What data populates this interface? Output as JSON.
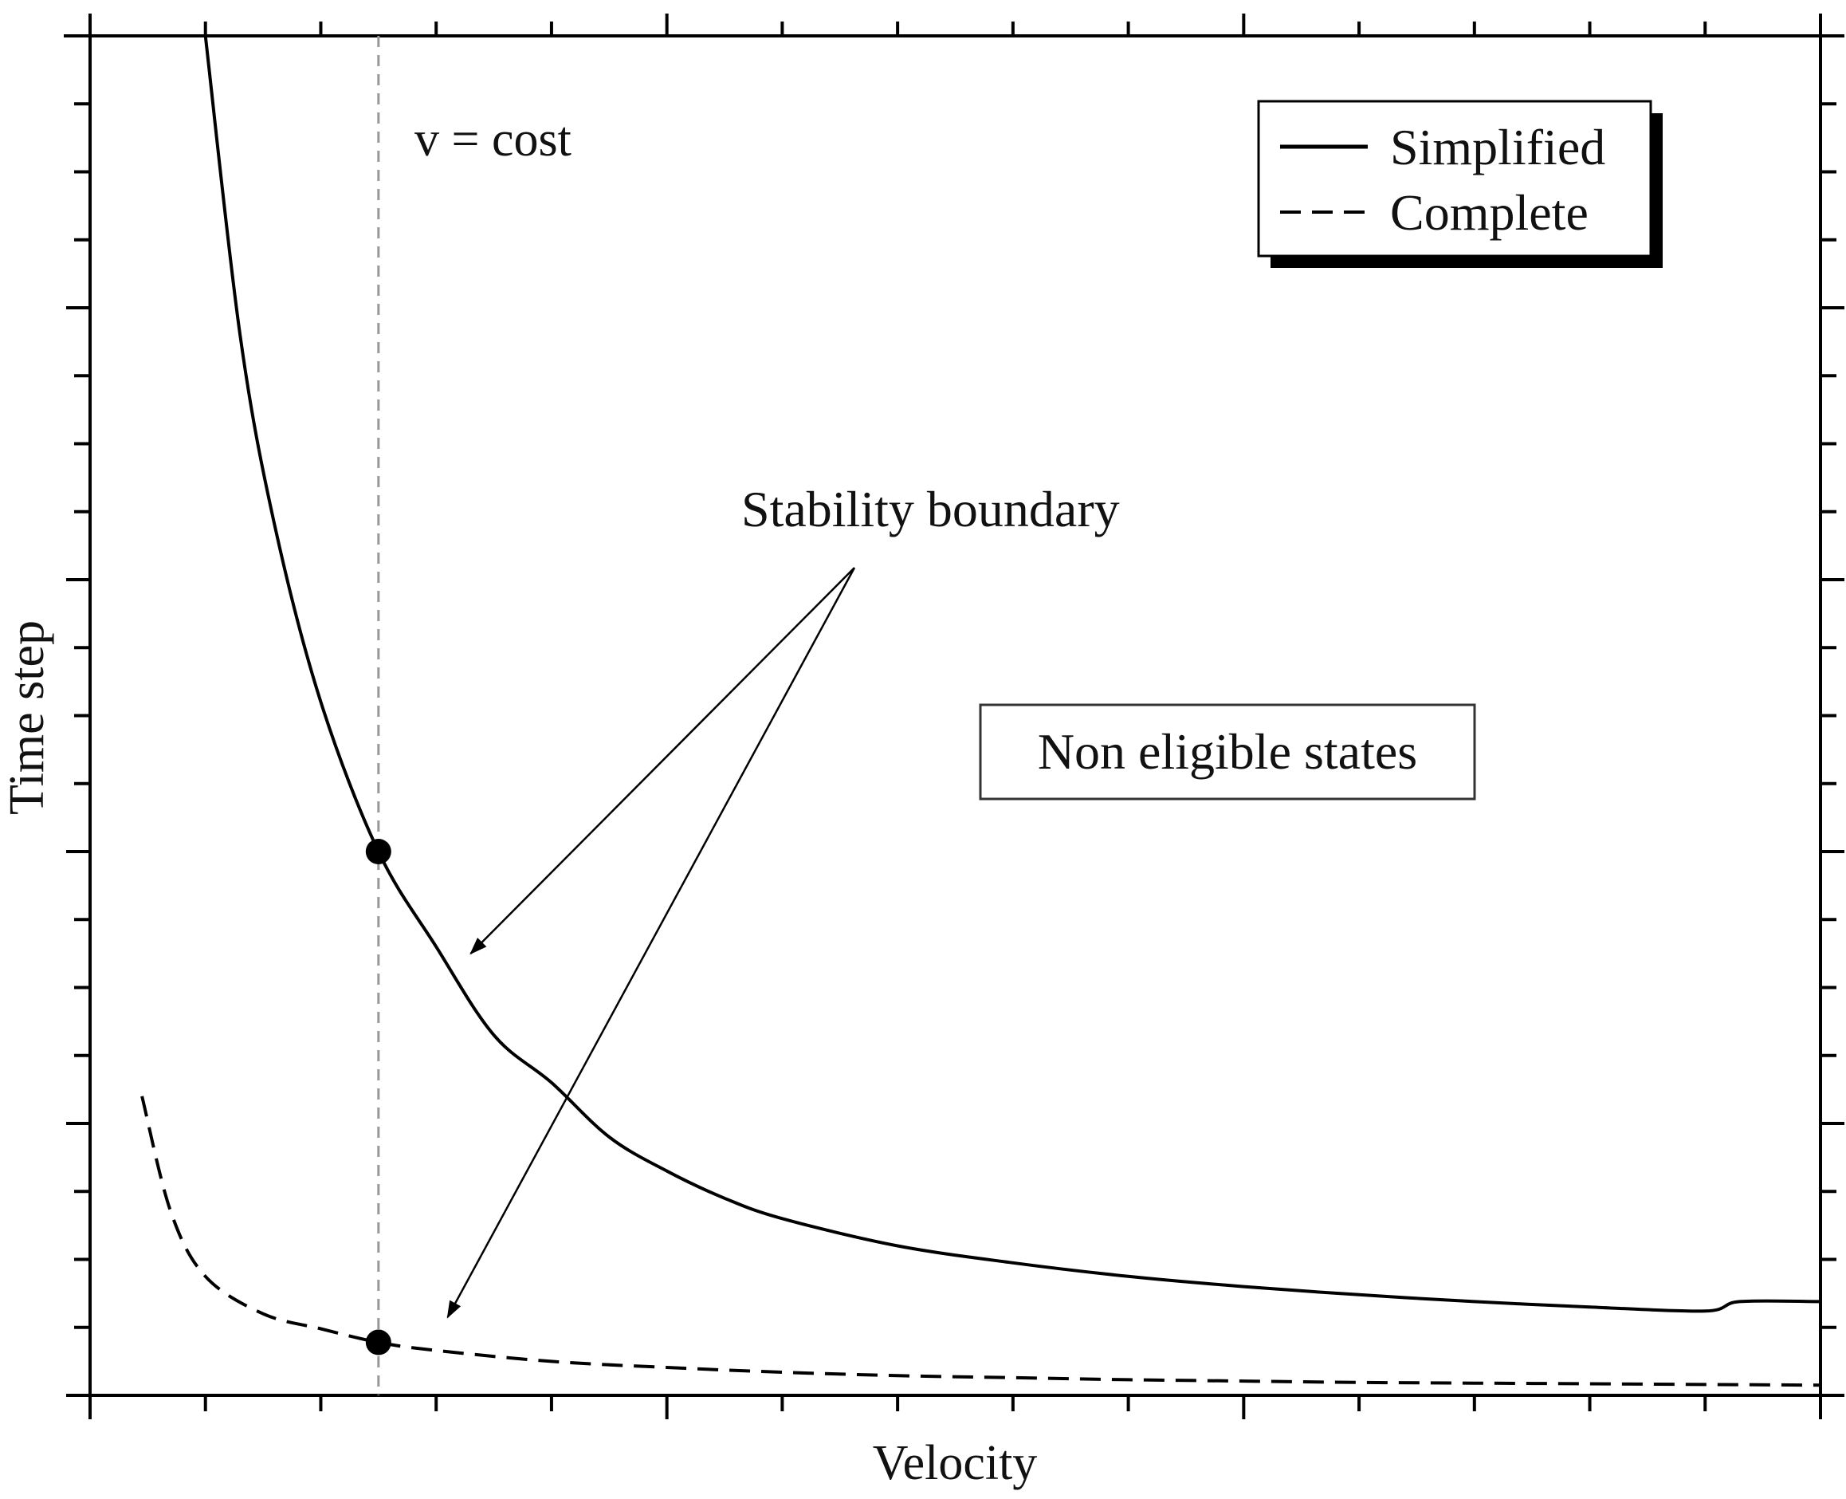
{
  "chart_data": {
    "type": "line",
    "xlabel": "Velocity",
    "ylabel": "Time step",
    "xlim": [
      0,
      15
    ],
    "ylim": [
      0,
      20
    ],
    "grid": false,
    "tick_labels": "none",
    "legend": {
      "placement": "top-right",
      "entries": [
        {
          "name": "Simplified",
          "style": "solid"
        },
        {
          "name": "Complete",
          "style": "dashed"
        }
      ]
    },
    "series": [
      {
        "name": "Simplified",
        "style": "solid",
        "color": "#000000",
        "x": [
          1.0,
          1.3,
          1.6,
          2.0,
          2.5,
          3.0,
          3.5,
          4.0,
          4.5,
          5.0,
          5.5,
          6.0,
          7.0,
          8.0,
          9.0,
          10.0,
          11.0,
          12.0,
          13.0,
          14.0,
          14.3,
          15.0
        ],
        "y": [
          20.0,
          15.6,
          12.8,
          10.2,
          8.0,
          6.6,
          5.3,
          4.6,
          3.8,
          3.3,
          2.9,
          2.6,
          2.2,
          1.95,
          1.75,
          1.6,
          1.48,
          1.38,
          1.3,
          1.24,
          1.38,
          1.38
        ]
      },
      {
        "name": "Complete",
        "style": "dashed",
        "color": "#000000",
        "x": [
          0.45,
          0.7,
          1.0,
          1.5,
          2.0,
          2.5,
          3.0,
          4.0,
          5.0,
          6.0,
          7.0,
          8.0,
          9.0,
          10.0,
          11.0,
          12.0,
          13.0,
          14.0,
          15.0
        ],
        "y": [
          4.4,
          2.7,
          1.75,
          1.2,
          0.98,
          0.78,
          0.66,
          0.5,
          0.41,
          0.34,
          0.29,
          0.26,
          0.23,
          0.21,
          0.19,
          0.18,
          0.17,
          0.16,
          0.15
        ]
      }
    ],
    "reference_line": {
      "label": "v = cost",
      "x": 2.5,
      "color": "#999999",
      "style": "dashed"
    },
    "points": [
      {
        "series": "Simplified",
        "x": 2.5,
        "y": 8.0
      },
      {
        "series": "Complete",
        "x": 2.5,
        "y": 0.78
      }
    ],
    "annotations": [
      {
        "text": "Stability boundary",
        "arrows_to": [
          {
            "x": 3.3,
            "y": 6.5
          },
          {
            "x": 3.1,
            "y": 1.15
          }
        ]
      },
      {
        "text": "Non eligible states",
        "boxed": true
      }
    ],
    "colors": {
      "axis": "#000000",
      "reference": "#999999",
      "shadow": "#000000"
    }
  }
}
